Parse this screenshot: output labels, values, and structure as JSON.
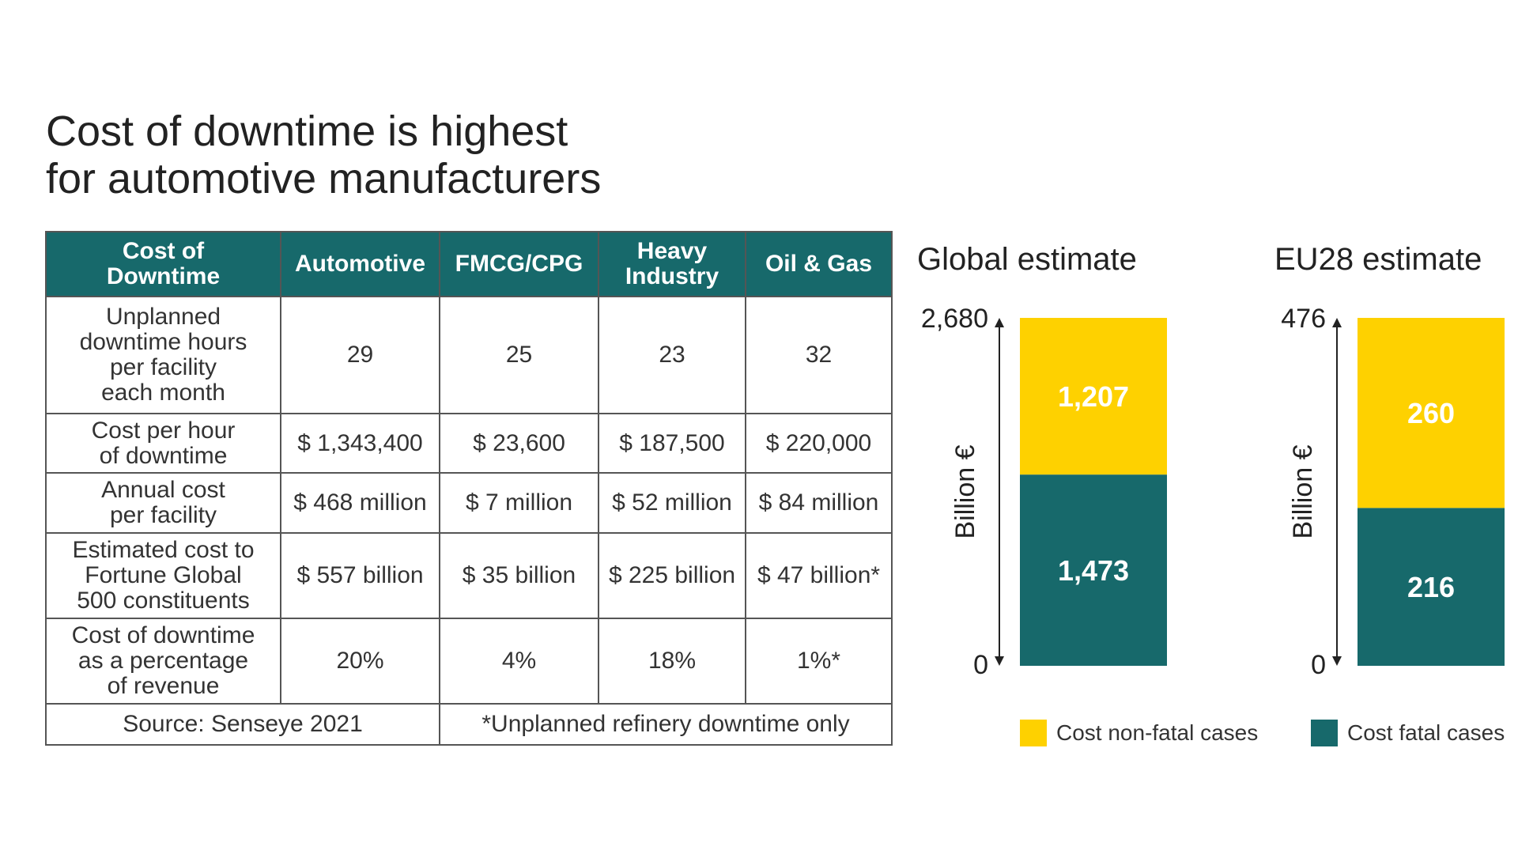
{
  "title_line1": "Cost of downtime is highest",
  "title_line2": "for automotive manufacturers",
  "table": {
    "headers": [
      "Cost of\nDowntime",
      "Automotive",
      "FMCG/CPG",
      "Heavy\nIndustry",
      "Oil & Gas"
    ],
    "rows": [
      {
        "label": "Unplanned\ndowntime hours\nper facility\neach month",
        "cells": [
          "29",
          "25",
          "23",
          "32"
        ]
      },
      {
        "label": "Cost per hour\nof downtime",
        "cells": [
          "$ 1,343,400",
          "$ 23,600",
          "$ 187,500",
          "$ 220,000"
        ]
      },
      {
        "label": "Annual cost\nper facility",
        "cells": [
          "$ 468 million",
          "$ 7 million",
          "$ 52 million",
          "$ 84 million"
        ]
      },
      {
        "label": "Estimated cost to\nFortune Global\n500 constituents",
        "cells": [
          "$ 557 billion",
          "$ 35 billion",
          "$ 225 billion",
          "$ 47 billion*"
        ]
      },
      {
        "label": "Cost of downtime\nas a percentage\nof revenue",
        "cells": [
          "20%",
          "4%",
          "18%",
          "1%*"
        ]
      }
    ],
    "source": "Source: Senseye 2021",
    "footnote": "*Unplanned refinery downtime only"
  },
  "colors": {
    "teal": "#17696b",
    "yellow": "#fed100"
  },
  "chart_data": [
    {
      "type": "bar",
      "stacked": true,
      "title": "Global estimate",
      "ylabel": "Billion €",
      "ylim": [
        0,
        2680
      ],
      "ytick_labels": [
        "0",
        "2,680"
      ],
      "series": [
        {
          "name": "Cost fatal cases",
          "values": [
            1473
          ],
          "labels": [
            "1,473"
          ],
          "color": "#17696b"
        },
        {
          "name": "Cost non-fatal cases",
          "values": [
            1207
          ],
          "labels": [
            "1,207"
          ],
          "color": "#fed100"
        }
      ]
    },
    {
      "type": "bar",
      "stacked": true,
      "title": "EU28 estimate",
      "ylabel": "Billion €",
      "ylim": [
        0,
        476
      ],
      "ytick_labels": [
        "0",
        "476"
      ],
      "series": [
        {
          "name": "Cost fatal cases",
          "values": [
            216
          ],
          "labels": [
            "216"
          ],
          "color": "#17696b"
        },
        {
          "name": "Cost non-fatal cases",
          "values": [
            260
          ],
          "labels": [
            "260"
          ],
          "color": "#fed100"
        }
      ]
    }
  ],
  "legend": [
    {
      "label": "Cost non-fatal cases",
      "color": "#fed100"
    },
    {
      "label": "Cost fatal cases",
      "color": "#17696b"
    }
  ]
}
